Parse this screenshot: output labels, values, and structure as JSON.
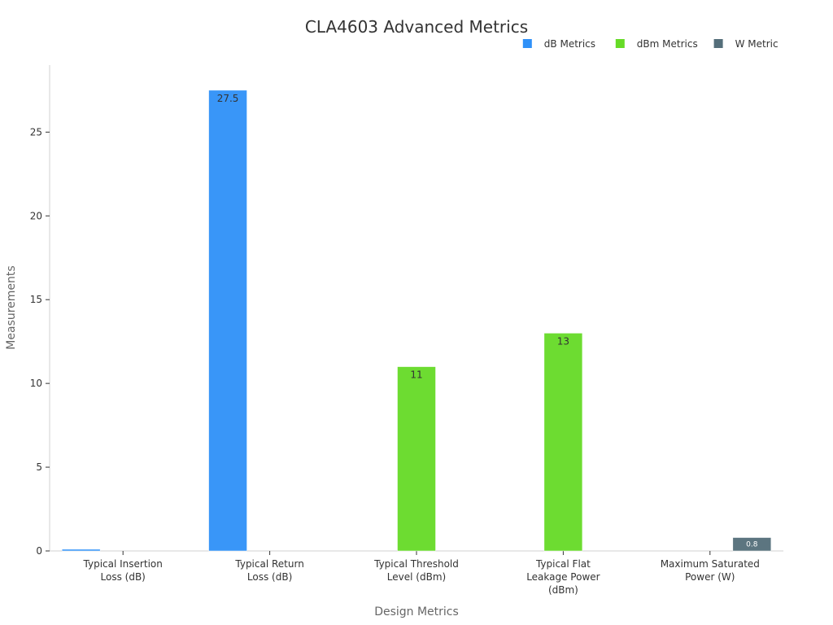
{
  "chart_data": {
    "type": "bar",
    "title": "CLA4603 Advanced Metrics",
    "xlabel": "Design Metrics",
    "ylabel": "Measurements",
    "ylim": [
      0,
      29
    ],
    "yticks": [
      0,
      5,
      10,
      15,
      20,
      25
    ],
    "grid": false,
    "legend_position": "top-right",
    "categories": [
      [
        "Typical Insertion",
        "Loss (dB)"
      ],
      [
        "Typical Return",
        "Loss (dB)"
      ],
      [
        "Typical Threshold",
        "Level (dBm)"
      ],
      [
        "Typical Flat",
        "Leakage Power",
        "(dBm)"
      ],
      [
        "Maximum Saturated",
        "Power (W)"
      ]
    ],
    "series": [
      {
        "name": "dB Metrics",
        "color": "#2f91f8",
        "values": [
          0.1,
          27.5,
          null,
          null,
          null
        ],
        "labels": [
          "",
          "27.5",
          "",
          "",
          ""
        ]
      },
      {
        "name": "dBm Metrics",
        "color": "#66db26",
        "values": [
          null,
          null,
          11,
          13,
          null
        ],
        "labels": [
          "",
          "",
          "11",
          "13",
          ""
        ]
      },
      {
        "name": "W Metric",
        "color": "#546e7a",
        "values": [
          null,
          null,
          null,
          null,
          0.8
        ],
        "labels": [
          "",
          "",
          "",
          "",
          "0.8"
        ]
      }
    ]
  }
}
